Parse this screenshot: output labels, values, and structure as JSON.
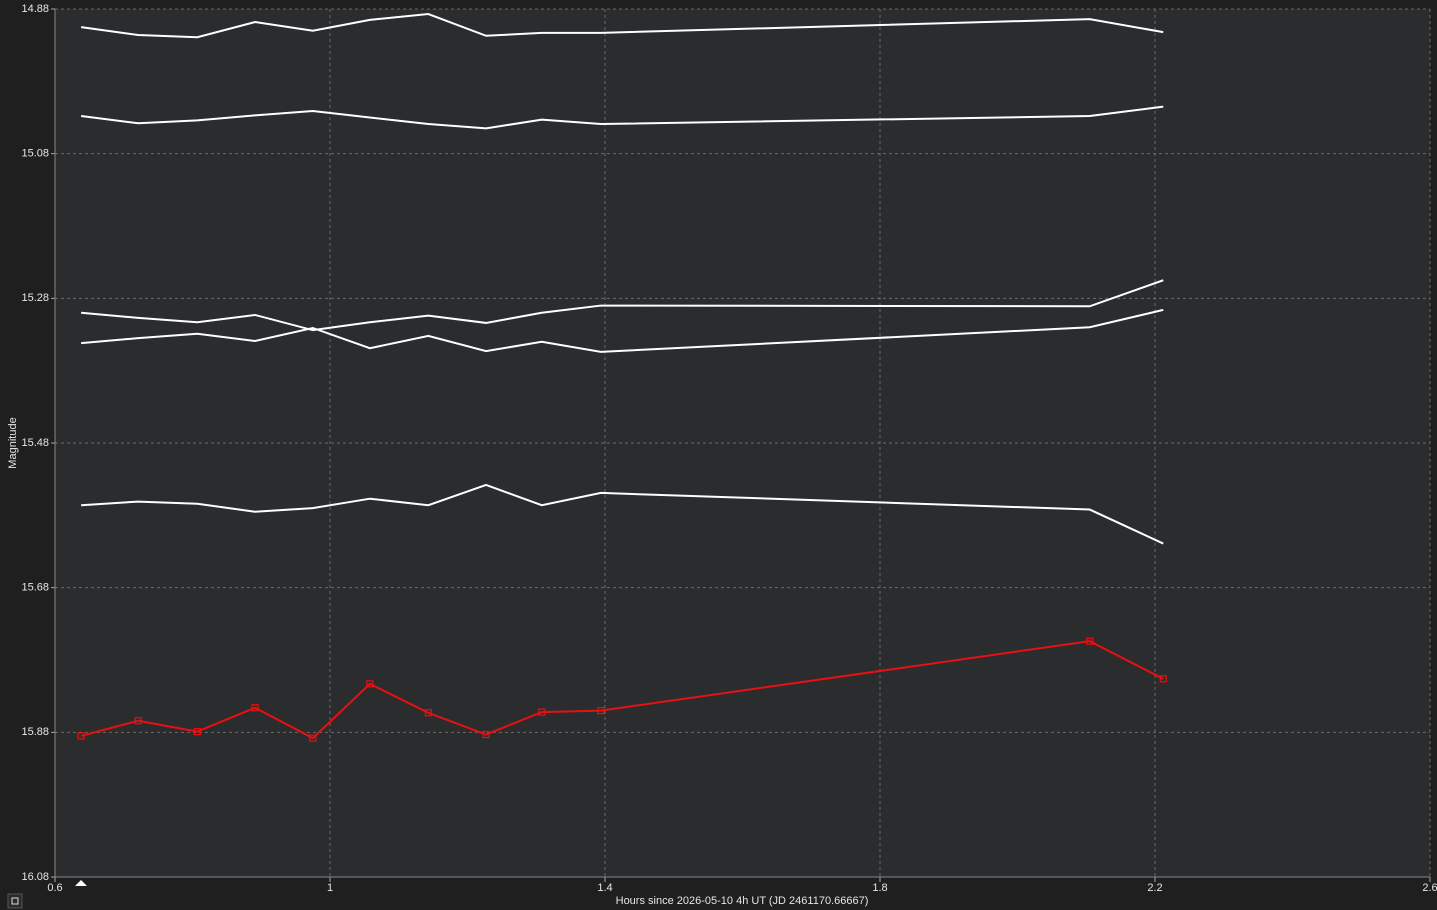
{
  "chart_data": {
    "type": "line",
    "xlabel": "Hours since 2026-05-10 4h UT (JD 2461170.66667)",
    "ylabel": "Magnitude",
    "x": [
      0.638,
      0.721,
      0.807,
      0.891,
      0.975,
      1.058,
      1.143,
      1.227,
      1.308,
      1.394,
      2.105,
      2.212
    ],
    "series": [
      {
        "color": "#ffffff",
        "markers": false,
        "values": [
          14.905,
          14.916,
          14.919,
          14.898,
          14.91,
          14.895,
          14.887,
          14.917,
          14.913,
          14.913,
          14.894,
          14.912
        ]
      },
      {
        "color": "#ffffff",
        "markers": false,
        "values": [
          15.028,
          15.038,
          15.034,
          15.027,
          15.021,
          15.03,
          15.039,
          15.045,
          15.033,
          15.039,
          15.028,
          15.015
        ]
      },
      {
        "color": "#ffffff",
        "markers": false,
        "values": [
          15.3,
          15.307,
          15.313,
          15.303,
          15.324,
          15.313,
          15.304,
          15.314,
          15.3,
          15.29,
          15.291,
          15.255
        ]
      },
      {
        "color": "#ffffff",
        "markers": false,
        "values": [
          15.342,
          15.335,
          15.329,
          15.339,
          15.321,
          15.349,
          15.332,
          15.353,
          15.34,
          15.354,
          15.32,
          15.296
        ]
      },
      {
        "color": "#ffffff",
        "markers": false,
        "values": [
          15.566,
          15.561,
          15.564,
          15.575,
          15.57,
          15.557,
          15.566,
          15.538,
          15.566,
          15.549,
          15.572,
          15.619
        ]
      },
      {
        "color": "#e81010",
        "markers": true,
        "values": [
          15.885,
          15.864,
          15.879,
          15.846,
          15.888,
          15.813,
          15.853,
          15.883,
          15.852,
          15.85,
          15.754,
          15.806
        ]
      }
    ],
    "xlim": [
      0.6,
      2.6
    ],
    "xticks": [
      0.6,
      1,
      1.4,
      1.8,
      2.2,
      2.6
    ],
    "ylim": [
      14.88,
      16.08
    ],
    "yticks": [
      14.88,
      15.08,
      15.28,
      15.48,
      15.68,
      15.88,
      16.08
    ],
    "y_inverted": true,
    "grid": true
  }
}
